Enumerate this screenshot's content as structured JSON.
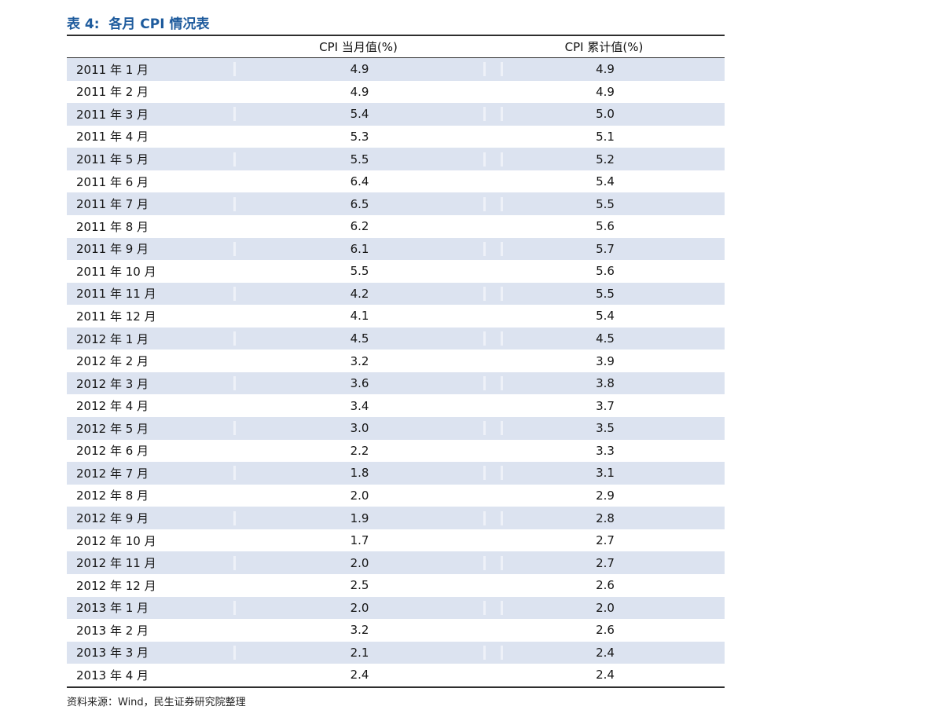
{
  "table": {
    "title": "表 4:  各月 CPI 情况表",
    "columns": {
      "month": "",
      "current": "CPI 当月值(%)",
      "cumulative": "CPI 累计值(%)"
    },
    "rows": [
      {
        "month": "2011 年 1 月",
        "current": "4.9",
        "cumulative": "4.9"
      },
      {
        "month": "2011 年 2 月",
        "current": "4.9",
        "cumulative": "4.9"
      },
      {
        "month": "2011 年 3 月",
        "current": "5.4",
        "cumulative": "5.0"
      },
      {
        "month": "2011 年 4 月",
        "current": "5.3",
        "cumulative": "5.1"
      },
      {
        "month": "2011 年 5 月",
        "current": "5.5",
        "cumulative": "5.2"
      },
      {
        "month": "2011 年 6 月",
        "current": "6.4",
        "cumulative": "5.4"
      },
      {
        "month": "2011 年 7 月",
        "current": "6.5",
        "cumulative": "5.5"
      },
      {
        "month": "2011 年 8 月",
        "current": "6.2",
        "cumulative": "5.6"
      },
      {
        "month": "2011 年 9 月",
        "current": "6.1",
        "cumulative": "5.7"
      },
      {
        "month": "2011 年 10 月",
        "current": "5.5",
        "cumulative": "5.6"
      },
      {
        "month": "2011 年 11 月",
        "current": "4.2",
        "cumulative": "5.5"
      },
      {
        "month": "2011 年 12 月",
        "current": "4.1",
        "cumulative": "5.4"
      },
      {
        "month": "2012 年 1 月",
        "current": "4.5",
        "cumulative": "4.5"
      },
      {
        "month": "2012 年 2 月",
        "current": "3.2",
        "cumulative": "3.9"
      },
      {
        "month": "2012 年 3 月",
        "current": "3.6",
        "cumulative": "3.8"
      },
      {
        "month": "2012 年 4 月",
        "current": "3.4",
        "cumulative": "3.7"
      },
      {
        "month": "2012 年 5 月",
        "current": "3.0",
        "cumulative": "3.5"
      },
      {
        "month": "2012 年 6 月",
        "current": "2.2",
        "cumulative": "3.3"
      },
      {
        "month": "2012 年 7 月",
        "current": "1.8",
        "cumulative": "3.1"
      },
      {
        "month": "2012 年 8 月",
        "current": "2.0",
        "cumulative": "2.9"
      },
      {
        "month": "2012 年 9 月",
        "current": "1.9",
        "cumulative": "2.8"
      },
      {
        "month": "2012 年 10 月",
        "current": "1.7",
        "cumulative": "2.7"
      },
      {
        "month": "2012 年 11 月",
        "current": "2.0",
        "cumulative": "2.7"
      },
      {
        "month": "2012 年 12 月",
        "current": "2.5",
        "cumulative": "2.6"
      },
      {
        "month": "2013 年 1 月",
        "current": "2.0",
        "cumulative": "2.0"
      },
      {
        "month": "2013 年 2 月",
        "current": "3.2",
        "cumulative": "2.6"
      },
      {
        "month": "2013 年 3 月",
        "current": "2.1",
        "cumulative": "2.4"
      },
      {
        "month": "2013 年 4 月",
        "current": "2.4",
        "cumulative": "2.4"
      }
    ],
    "source": "资料来源：Wind，民生证券研究院整理"
  },
  "colors": {
    "title_blue": "#1e5b9d",
    "row_shade": "#dce3f0",
    "rule_dark": "#2e2e2e",
    "text": "#151515",
    "background": "#ffffff"
  }
}
